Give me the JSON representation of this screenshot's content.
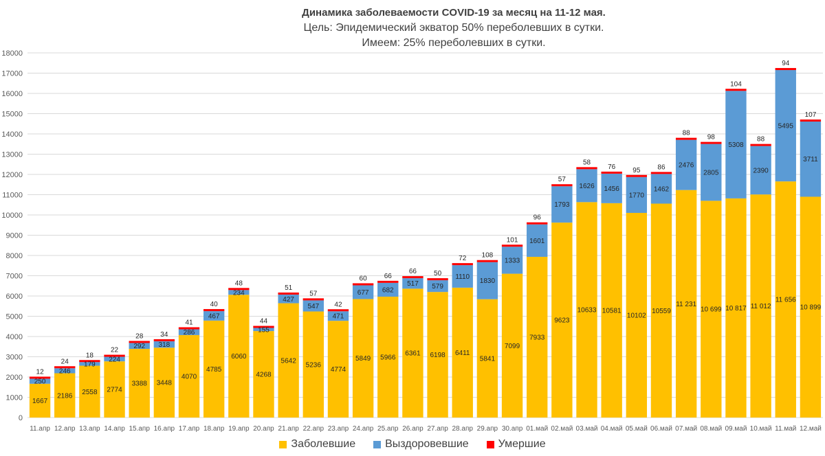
{
  "chart_data": {
    "type": "bar",
    "stacked": true,
    "title": "Динамика заболеваемости COVID-19 за месяц на 11-12 мая.",
    "subtitle_lines": [
      "Цель: Эпидемический экватор 50% переболевших в сутки.",
      "Имеем: 25% переболевших в сутки."
    ],
    "xlabel": "",
    "ylabel": "",
    "ylim": [
      0,
      18000
    ],
    "yticks": [
      "0",
      "1000",
      "2000",
      "3000",
      "4000",
      "5000",
      "6000",
      "7000",
      "8000",
      "9000",
      "10000",
      "11000",
      "12000",
      "13000",
      "14000",
      "15000",
      "16000",
      "17000",
      "18000"
    ],
    "grid": true,
    "legend_position": "bottom",
    "categories": [
      "11.апр",
      "12.апр",
      "13.апр",
      "14.апр",
      "15.апр",
      "16.апр",
      "17.апр",
      "18.апр",
      "19.апр",
      "20.апр",
      "21.апр",
      "22.апр",
      "23.апр",
      "24.апр",
      "25.апр",
      "26.апр",
      "27.апр",
      "28.апр",
      "29.апр",
      "30.апр",
      "01.май",
      "02.май",
      "03.май",
      "04.май",
      "05.май",
      "06.май",
      "07.май",
      "08.май",
      "09.май",
      "10.май",
      "11.май",
      "12.май"
    ],
    "series": [
      {
        "name": "Заболевшие",
        "color": "#FFC000",
        "values": [
          1667,
          2186,
          2558,
          2774,
          3388,
          3448,
          4070,
          4785,
          6060,
          4268,
          5642,
          5236,
          4774,
          5849,
          5966,
          6361,
          6198,
          6411,
          5841,
          7099,
          7933,
          9623,
          10633,
          10581,
          10102,
          10559,
          11231,
          10699,
          10817,
          11012,
          11656,
          10899
        ],
        "labels": [
          "1667",
          "2186",
          "2558",
          "2774",
          "3388",
          "3448",
          "4070",
          "4785",
          "6060",
          "4268",
          "5642",
          "5236",
          "4774",
          "5849",
          "5966",
          "6361",
          "6198",
          "6411",
          "5841",
          "7099",
          "7933",
          "9623",
          "10633",
          "10581",
          "10102",
          "10559",
          "11 231",
          "10 699",
          "10 817",
          "11 012",
          "11 656",
          "10 899"
        ]
      },
      {
        "name": "Выздоровевшие",
        "color": "#5B9BD5",
        "values": [
          250,
          246,
          179,
          224,
          292,
          318,
          286,
          467,
          234,
          155,
          427,
          547,
          471,
          677,
          682,
          517,
          579,
          1110,
          1830,
          1333,
          1601,
          1793,
          1626,
          1456,
          1770,
          1462,
          2476,
          2805,
          5308,
          2390,
          5495,
          3711
        ],
        "labels": [
          "250",
          "246",
          "179",
          "224",
          "292",
          "318",
          "286",
          "467",
          "234",
          "155",
          "427",
          "547",
          "471",
          "677",
          "682",
          "517",
          "579",
          "1110",
          "1830",
          "1333",
          "1601",
          "1793",
          "1626",
          "1456",
          "1770",
          "1462",
          "2476",
          "2805",
          "5308",
          "2390",
          "5495",
          "3711"
        ]
      },
      {
        "name": "Умершие",
        "color": "#FF0000",
        "values": [
          12,
          24,
          18,
          22,
          28,
          34,
          41,
          40,
          48,
          44,
          51,
          57,
          42,
          60,
          66,
          66,
          50,
          72,
          108,
          101,
          96,
          57,
          58,
          76,
          95,
          86,
          88,
          98,
          104,
          88,
          94,
          107
        ],
        "labels": [
          "12",
          "24",
          "18",
          "22",
          "28",
          "34",
          "41",
          "40",
          "48",
          "44",
          "51",
          "57",
          "42",
          "60",
          "66",
          "66",
          "50",
          "72",
          "108",
          "101",
          "96",
          "57",
          "58",
          "76",
          "95",
          "86",
          "88",
          "98",
          "104",
          "88",
          "94",
          "107"
        ]
      }
    ]
  }
}
